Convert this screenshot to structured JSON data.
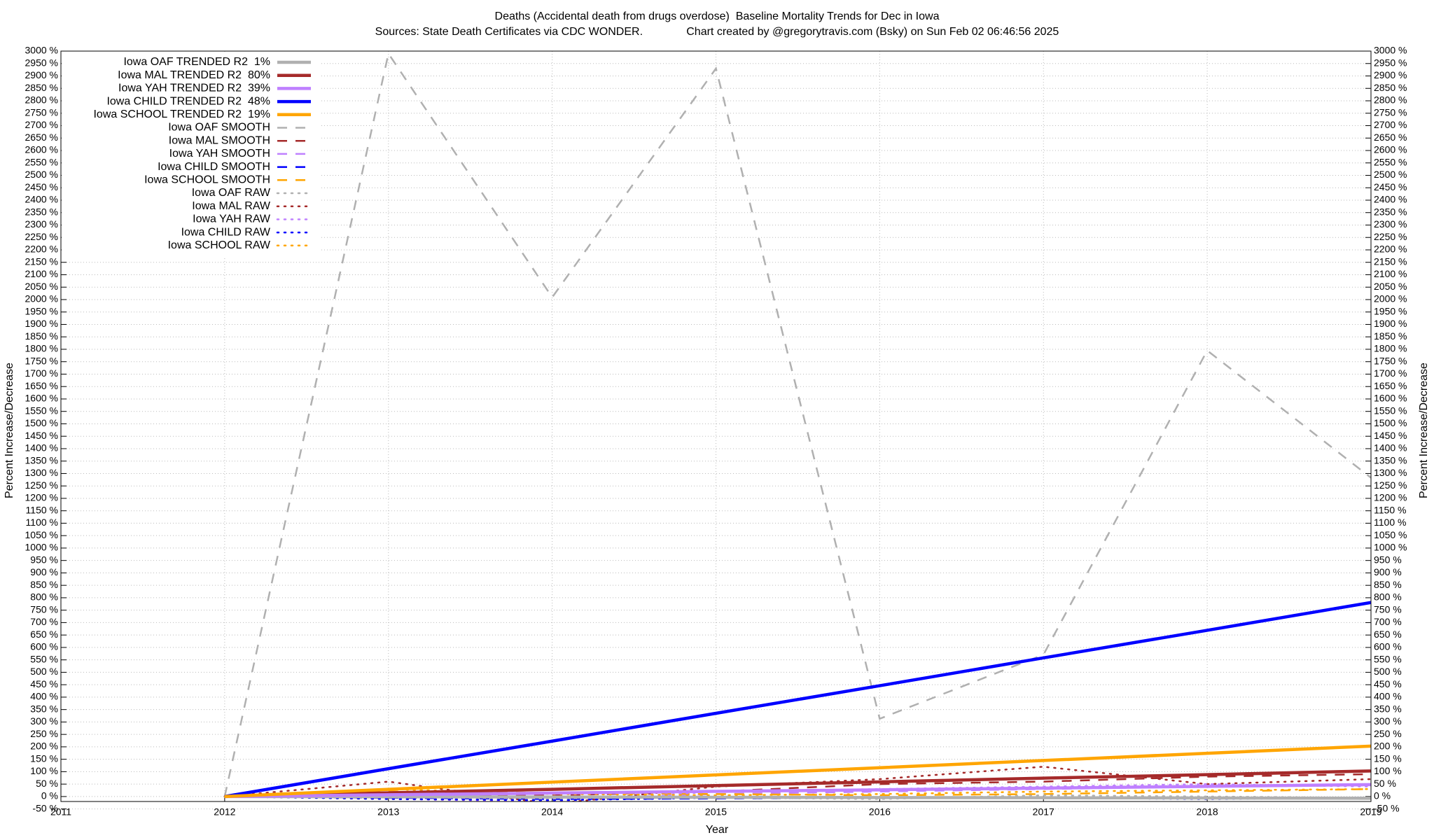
{
  "chart_data": {
    "type": "line",
    "title": "Deaths (Accidental death from drugs overdose)  Baseline Mortality Trends for Dec in Iowa",
    "subtitle": "Sources: State Death Certificates via CDC WONDER.              Chart created by @gregorytravis.com (Bsky) on Sun Feb 02 06:46:56 2025",
    "xlabel": "Year",
    "ylabel": "Percent Increase/Decrease",
    "x": [
      2012,
      2013,
      2014,
      2015,
      2016,
      2017,
      2018,
      2019
    ],
    "xlim": [
      2011,
      2019
    ],
    "xticks": [
      2011,
      2012,
      2013,
      2014,
      2015,
      2016,
      2017,
      2018,
      2019
    ],
    "ylim": [
      -20,
      3000
    ],
    "yticks": [
      {
        "value": -50,
        "label": "-50 %"
      },
      {
        "value": 0,
        "label": "0 %"
      },
      {
        "value": 50,
        "label": "50 %"
      },
      {
        "value": 100,
        "label": "100 %"
      },
      {
        "value": 150,
        "label": "150 %"
      },
      {
        "value": 200,
        "label": "200 %"
      },
      {
        "value": 250,
        "label": "250 %"
      },
      {
        "value": 300,
        "label": "300 %"
      },
      {
        "value": 350,
        "label": "350 %"
      },
      {
        "value": 400,
        "label": "400 %"
      },
      {
        "value": 450,
        "label": "450 %"
      },
      {
        "value": 500,
        "label": "500 %"
      },
      {
        "value": 550,
        "label": "550 %"
      },
      {
        "value": 600,
        "label": "600 %"
      },
      {
        "value": 650,
        "label": "650 %"
      },
      {
        "value": 700,
        "label": "700 %"
      },
      {
        "value": 750,
        "label": "750 %"
      },
      {
        "value": 800,
        "label": "800 %"
      },
      {
        "value": 850,
        "label": "850 %"
      },
      {
        "value": 900,
        "label": "900 %"
      },
      {
        "value": 950,
        "label": "950 %"
      },
      {
        "value": 1000,
        "label": "1000 %"
      },
      {
        "value": 1050,
        "label": "1050 %"
      },
      {
        "value": 1100,
        "label": "1100 %"
      },
      {
        "value": 1150,
        "label": "1150 %"
      },
      {
        "value": 1200,
        "label": "1200 %"
      },
      {
        "value": 1250,
        "label": "1250 %"
      },
      {
        "value": 1300,
        "label": "1300 %"
      },
      {
        "value": 1350,
        "label": "1350 %"
      },
      {
        "value": 1400,
        "label": "1400 %"
      },
      {
        "value": 1450,
        "label": "1450 %"
      },
      {
        "value": 1500,
        "label": "1500 %"
      },
      {
        "value": 1550,
        "label": "1550 %"
      },
      {
        "value": 1600,
        "label": "1600 %"
      },
      {
        "value": 1650,
        "label": "1650 %"
      },
      {
        "value": 1700,
        "label": "1700 %"
      },
      {
        "value": 1750,
        "label": "1750 %"
      },
      {
        "value": 1800,
        "label": "1800 %"
      },
      {
        "value": 1850,
        "label": "1850 %"
      },
      {
        "value": 1900,
        "label": "1900 %"
      },
      {
        "value": 1950,
        "label": "1950 %"
      },
      {
        "value": 2000,
        "label": "2000 %"
      },
      {
        "value": 2050,
        "label": "2050 %"
      },
      {
        "value": 2100,
        "label": "2100 %"
      },
      {
        "value": 2150,
        "label": "2150 %"
      },
      {
        "value": 2200,
        "label": "2200 %"
      },
      {
        "value": 2250,
        "label": "2250 %"
      },
      {
        "value": 2300,
        "label": "2300 %"
      },
      {
        "value": 2350,
        "label": "2350 %"
      },
      {
        "value": 2400,
        "label": "2400 %"
      },
      {
        "value": 2450,
        "label": "2450 %"
      },
      {
        "value": 2500,
        "label": "2500 %"
      },
      {
        "value": 2550,
        "label": "2550 %"
      },
      {
        "value": 2600,
        "label": "2600 %"
      },
      {
        "value": 2650,
        "label": "2650 %"
      },
      {
        "value": 2700,
        "label": "2700 %"
      },
      {
        "value": 2750,
        "label": "2750 %"
      },
      {
        "value": 2800,
        "label": "2800 %"
      },
      {
        "value": 2850,
        "label": "2850 %"
      },
      {
        "value": 2900,
        "label": "2900 %"
      },
      {
        "value": 2950,
        "label": "2950 %"
      },
      {
        "value": 3000,
        "label": "3000 %"
      }
    ],
    "grid": true,
    "legend": "top-left",
    "series": [
      {
        "name": "Iowa OAF TRENDED R2  1%",
        "color": "#b0b0b0",
        "style": "trend",
        "values": [
          0,
          -1,
          -2,
          -3,
          -4,
          -5,
          -6,
          -7
        ]
      },
      {
        "name": "Iowa MAL TRENDED R2  80%",
        "color": "#a52a2a",
        "style": "trend",
        "values": [
          0,
          15,
          29,
          44,
          59,
          74,
          88,
          103
        ]
      },
      {
        "name": "Iowa YAH TRENDED R2  39%",
        "color": "#bf80ff",
        "style": "trend",
        "values": [
          0,
          7,
          14,
          21,
          27,
          34,
          41,
          48
        ]
      },
      {
        "name": "Iowa CHILD TRENDED R2  48%",
        "color": "#0000ff",
        "style": "trend",
        "values": [
          0,
          112,
          223,
          335,
          446,
          558,
          669,
          781
        ]
      },
      {
        "name": "Iowa SCHOOL TRENDED R2  19%",
        "color": "#ffa500",
        "style": "trend",
        "values": [
          0,
          29,
          58,
          87,
          116,
          145,
          174,
          203
        ]
      },
      {
        "name": "Iowa OAF SMOOTH",
        "color": "#b0b0b0",
        "style": "smooth",
        "values": [
          0,
          2990,
          2009,
          2930,
          313,
          571,
          1795,
          1283
        ]
      },
      {
        "name": "Iowa MAL SMOOTH",
        "color": "#a52a2a",
        "style": "smooth",
        "values": [
          0,
          10,
          5,
          20,
          50,
          60,
          80,
          90
        ]
      },
      {
        "name": "Iowa YAH SMOOTH",
        "color": "#bf80ff",
        "style": "smooth",
        "values": [
          0,
          -5,
          -10,
          10,
          20,
          30,
          40,
          45
        ]
      },
      {
        "name": "Iowa CHILD SMOOTH",
        "color": "#0000ff",
        "style": "smooth",
        "values": [
          0,
          -5,
          -10,
          -8,
          -5,
          -3,
          -5,
          -5
        ]
      },
      {
        "name": "Iowa SCHOOL SMOOTH",
        "color": "#ffa500",
        "style": "smooth",
        "values": [
          0,
          20,
          15,
          10,
          5,
          10,
          20,
          30
        ]
      },
      {
        "name": "Iowa OAF RAW",
        "color": "#b0b0b0",
        "style": "raw",
        "values": [
          0,
          -5,
          -10,
          -5,
          -10,
          5,
          0,
          -5
        ]
      },
      {
        "name": "Iowa MAL RAW",
        "color": "#a52a2a",
        "style": "raw",
        "values": [
          0,
          60,
          -30,
          40,
          70,
          120,
          50,
          70
        ]
      },
      {
        "name": "Iowa YAH RAW",
        "color": "#bf80ff",
        "style": "raw",
        "values": [
          0,
          -10,
          -20,
          20,
          30,
          40,
          50,
          40
        ]
      },
      {
        "name": "Iowa CHILD RAW",
        "color": "#0000ff",
        "style": "raw",
        "values": [
          0,
          -10,
          -15,
          -5,
          -5,
          -5,
          -10,
          -5
        ]
      },
      {
        "name": "Iowa SCHOOL RAW",
        "color": "#ffa500",
        "style": "raw",
        "values": [
          0,
          30,
          10,
          5,
          10,
          20,
          25,
          30
        ]
      }
    ]
  }
}
